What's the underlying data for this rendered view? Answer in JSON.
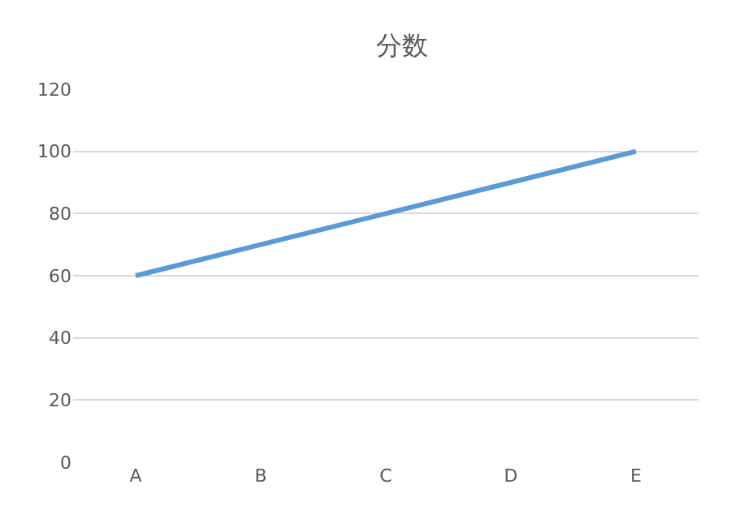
{
  "chart_data": {
    "type": "line",
    "title": "分数",
    "categories": [
      "A",
      "B",
      "C",
      "D",
      "E"
    ],
    "series": [
      {
        "color": "#5b9bd5",
        "values": [
          60,
          70,
          80,
          90,
          100
        ]
      }
    ],
    "ylim": [
      0,
      120
    ],
    "yticks": [
      0,
      20,
      40,
      60,
      80,
      100,
      120
    ],
    "grid": "y",
    "marker": "none",
    "line_style": "solid",
    "legend": false
  }
}
